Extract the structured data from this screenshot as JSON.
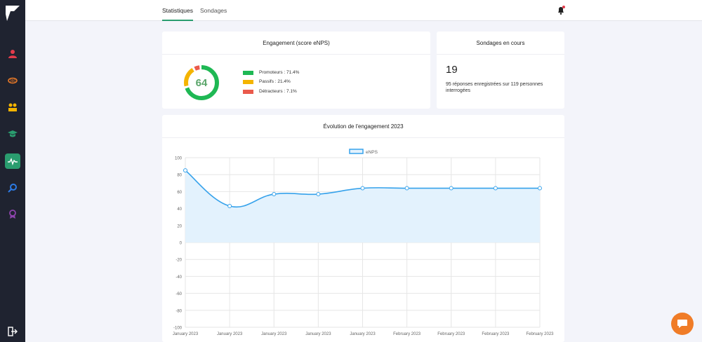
{
  "header": {
    "tabs": [
      {
        "label": "Statistiques",
        "active": true
      },
      {
        "label": "Sondages",
        "active": false
      }
    ]
  },
  "sidebar": {
    "items": [
      {
        "icon": "user-icon",
        "color": "#e23b4b"
      },
      {
        "icon": "360-icon",
        "color": "#f07c27"
      },
      {
        "icon": "team-icon",
        "color": "#f4b400"
      },
      {
        "icon": "graduation-cap-icon",
        "color": "#2a9d6f"
      },
      {
        "icon": "pulse-icon",
        "color": "#ffffff",
        "active": true
      },
      {
        "icon": "magnifier-icon",
        "color": "#2c7be5"
      },
      {
        "icon": "award-icon",
        "color": "#8e44ad"
      }
    ],
    "logout_icon": "logout-icon"
  },
  "engagement_card": {
    "title": "Engagement (score eNPS)",
    "score": "64",
    "legend": [
      {
        "label": "Promoteurs : 71.4%",
        "color": "#1fb854",
        "pct": 71.4
      },
      {
        "label": "Passifs : 21.4%",
        "color": "#f4b400",
        "pct": 21.4
      },
      {
        "label": "Détracteurs : 7.1%",
        "color": "#ea5a4c",
        "pct": 7.1
      }
    ]
  },
  "surveys_card": {
    "title": "Sondages en cours",
    "count": "19",
    "description": "95 réponses enregistrées sur 119 personnes interrogées"
  },
  "chart_card": {
    "title": "Évolution de l'engagement 2023"
  },
  "chart_data": {
    "type": "line",
    "series": [
      {
        "name": "eNPS",
        "values": [
          85,
          43,
          57,
          57,
          64,
          64,
          64,
          64,
          64
        ]
      }
    ],
    "categories": [
      "January 2023",
      "January 2023",
      "January 2023",
      "January 2023",
      "January 2023",
      "February 2023",
      "February 2023",
      "February 2023",
      "February 2023"
    ],
    "ylim": [
      -100,
      100
    ],
    "yticks": [
      100,
      80,
      60,
      40,
      20,
      0,
      -20,
      -40,
      -60,
      -80,
      -100
    ],
    "grid": true,
    "legend_position": "top",
    "line_color": "#36a2eb",
    "fill_color": "#e3f2fd"
  }
}
